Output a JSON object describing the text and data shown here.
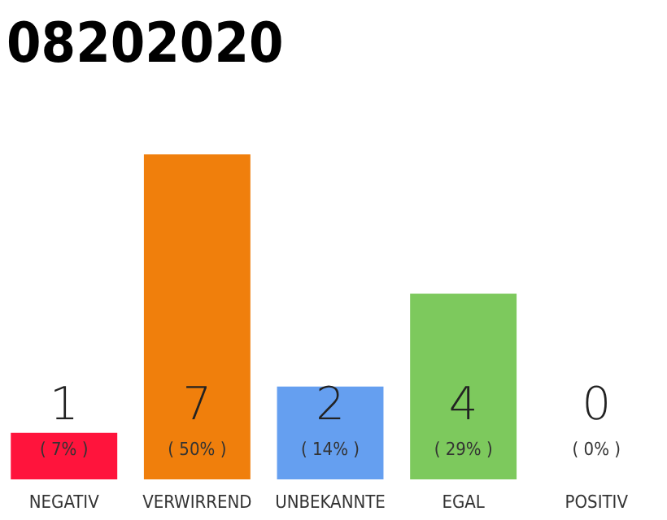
{
  "chart_data": {
    "type": "bar",
    "title": "08202020",
    "categories": [
      "NEGATIV",
      "VERWIRREND",
      "UNBEKANNTE",
      "EGAL",
      "POSITIV"
    ],
    "values": [
      1,
      7,
      2,
      4,
      0
    ],
    "colors": [
      "#ff143c",
      "#f07f0c",
      "#659ff0",
      "#7dc95d",
      "#22aa44"
    ],
    "data_labels": true,
    "annotations": [
      "( 7% )",
      "( 50% )",
      "( 14% )",
      "( 29% )",
      "( 0% )"
    ]
  }
}
